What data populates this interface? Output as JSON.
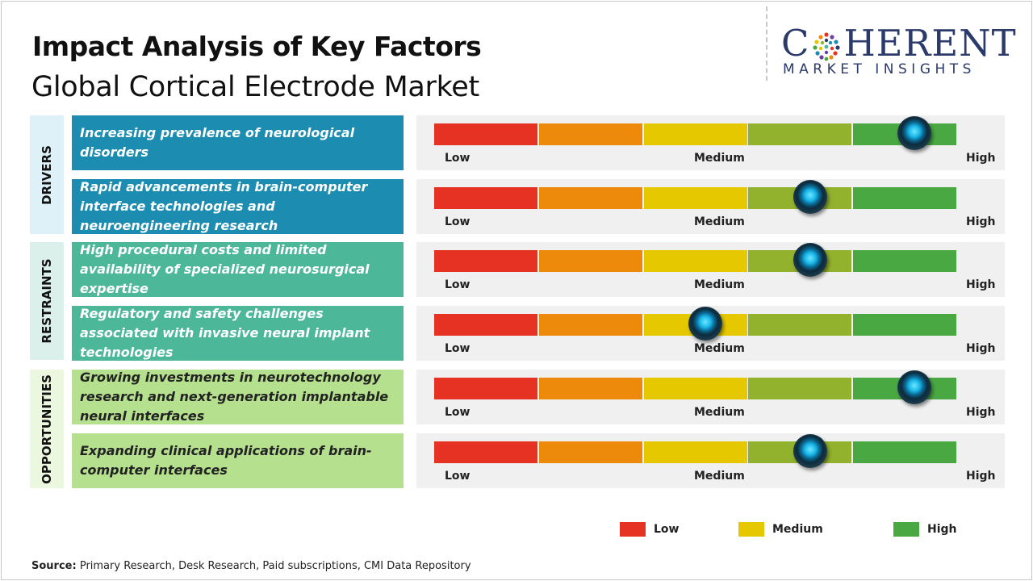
{
  "title": "Impact Analysis of Key Factors",
  "subtitle": "Global Cortical Electrode Market",
  "logo": {
    "main_left": "C",
    "main_right": "HERENT",
    "sub": "MARKET INSIGHTS"
  },
  "scale_labels": {
    "low": "Low",
    "medium": "Medium",
    "high": "High"
  },
  "colors": {
    "drivers_box": "#1c8cb0",
    "drivers_cat": "#dff1f8",
    "restraints_box": "#4db79a",
    "restraints_cat": "#dcf0eb",
    "opportunities_box": "#b5e08e",
    "opportunities_cat": "#ebf7df",
    "scale": [
      "#e53222",
      "#ee8a0b",
      "#e6c800",
      "#92b12c",
      "#4aa843"
    ]
  },
  "categories": [
    {
      "label": "DRIVERS"
    },
    {
      "label": "RESTRAINTS"
    },
    {
      "label": "OPPORTUNITIES"
    }
  ],
  "chart_data": {
    "type": "bar",
    "title": "Impact Analysis of Key Factors",
    "subtitle": "Global Cortical Electrode Market",
    "scale": [
      "Low",
      "Medium",
      "High"
    ],
    "value_range": [
      0,
      1
    ],
    "factors": [
      {
        "category": "DRIVERS",
        "text": "Increasing prevalence of neurological disorders",
        "value": 0.92
      },
      {
        "category": "DRIVERS",
        "text": "Rapid advancements in brain-computer interface technologies and neuroengineering research",
        "value": 0.72
      },
      {
        "category": "RESTRAINTS",
        "text": "High procedural costs and limited availability of specialized neurosurgical expertise",
        "value": 0.72
      },
      {
        "category": "RESTRAINTS",
        "text": "Regulatory and safety challenges associated with invasive neural implant technologies",
        "value": 0.52
      },
      {
        "category": "OPPORTUNITIES",
        "text": "Growing investments in neurotechnology research and next-generation implantable neural interfaces",
        "value": 0.92
      },
      {
        "category": "OPPORTUNITIES",
        "text": "Expanding clinical applications of brain-computer interfaces",
        "value": 0.72
      }
    ]
  },
  "legend": [
    {
      "label": "Low",
      "color": "#e53222"
    },
    {
      "label": "Medium",
      "color": "#e6c800"
    },
    {
      "label": "High",
      "color": "#4aa843"
    }
  ],
  "source": {
    "label": "Source:",
    "text": "Primary Research, Desk Research, Paid subscriptions, CMI Data Repository"
  }
}
